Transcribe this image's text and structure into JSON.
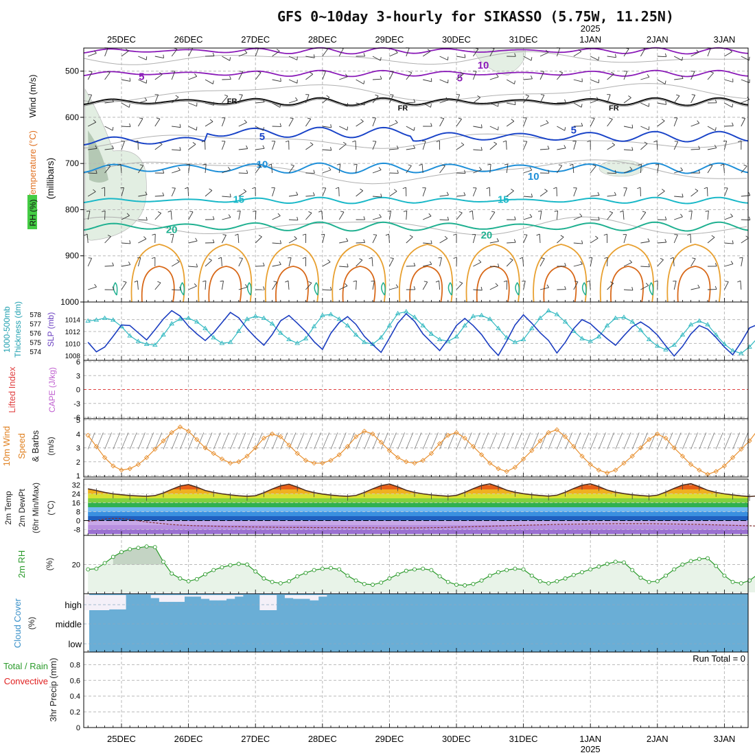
{
  "title": "GFS 0~10day 3-hourly for SIKASSO (5.75W, 11.25N)",
  "colors": {
    "jet_purple": "#8a1ab8",
    "freezing": "#111111",
    "blue5": "#1a44c8",
    "blue10": "#1e8fd8",
    "cyan15": "#19b8c8",
    "teal20": "#1fb090",
    "warm_orange": "#e8a030",
    "dark_orange": "#d86818",
    "slp_blue": "#1a3cc0",
    "thickness_cyan": "#30b8c0",
    "wind_orange": "#e89030",
    "rh_green": "#2a9a2a",
    "cloud_blue": "#6aaed6",
    "cape_red": "#e04040"
  },
  "chart_data": {
    "type": "meteogram",
    "time_axis": {
      "year_label": "2025",
      "dates": [
        "25DEC",
        "26DEC",
        "27DEC",
        "28DEC",
        "29DEC",
        "30DEC",
        "31DEC",
        "1JAN",
        "2JAN",
        "3JAN"
      ],
      "start_date": "24DEC 12Z",
      "step_hours": 3,
      "n_steps": 81
    },
    "panels": {
      "upper_air": {
        "ylabel_left": [
          "Wind (m/s)",
          "Temperature (°C)",
          "RH (%)"
        ],
        "ylabel_mid": "(millibars)",
        "ylim": [
          1000,
          450
        ],
        "yticks": [
          500,
          600,
          700,
          800,
          900,
          1000
        ],
        "contour_labels": [
          {
            "text": "10",
            "day": 5.4,
            "p": 487,
            "color": "jet_purple"
          },
          {
            "text": "5",
            "day": 0.3,
            "p": 512,
            "color": "jet_purple"
          },
          {
            "text": "5",
            "day": 5.05,
            "p": 515,
            "color": "jet_purple"
          },
          {
            "text": "FR",
            "day": 1.65,
            "p": 563,
            "color": "freezing"
          },
          {
            "text": "FR",
            "day": 4.2,
            "p": 578,
            "color": "freezing"
          },
          {
            "text": "FR",
            "day": 7.35,
            "p": 578,
            "color": "freezing"
          },
          {
            "text": "5",
            "day": 2.1,
            "p": 642,
            "color": "blue5"
          },
          {
            "text": "5",
            "day": 6.75,
            "p": 628,
            "color": "blue5"
          },
          {
            "text": "10",
            "day": 2.1,
            "p": 702,
            "color": "blue10"
          },
          {
            "text": "10",
            "day": 6.15,
            "p": 728,
            "color": "blue10"
          },
          {
            "text": "15",
            "day": 1.75,
            "p": 778,
            "color": "cyan15"
          },
          {
            "text": "15",
            "day": 5.7,
            "p": 778,
            "color": "cyan15"
          },
          {
            "text": "20",
            "day": 0.75,
            "p": 843,
            "color": "teal20"
          },
          {
            "text": "20",
            "day": 5.45,
            "p": 855,
            "color": "teal20"
          }
        ]
      },
      "slp_thickness": {
        "ylabel": [
          "1000-500mb",
          "Thickness (dm)",
          "SLP (mb)"
        ],
        "thickness_ticks": [
          574,
          575,
          576,
          577,
          578
        ],
        "slp_ticks": [
          1008,
          1010,
          1012,
          1014
        ],
        "slp_ylim": [
          1007.4,
          1015.8
        ],
        "thk_ylim": [
          573.2,
          578.6
        ],
        "slp_mb": [
          1010.2,
          1008.6,
          1009.4,
          1011.2,
          1013.1,
          1013.0,
          1011.8,
          1010.6,
          1012.3,
          1014.1,
          1015.5,
          1014.6,
          1012.9,
          1011.6,
          1010.5,
          1011.8,
          1013.5,
          1015.2,
          1014.3,
          1012.5,
          1011.0,
          1009.7,
          1011.5,
          1013.8,
          1014.7,
          1013.4,
          1012.0,
          1010.3,
          1009.0,
          1011.7,
          1013.5,
          1014.5,
          1013.2,
          1011.2,
          1009.8,
          1008.5,
          1010.9,
          1013.4,
          1015.0,
          1013.7,
          1011.6,
          1010.2,
          1008.8,
          1010.7,
          1013.0,
          1014.2,
          1013.0,
          1011.5,
          1009.5,
          1008.0,
          1010.4,
          1013.1,
          1014.8,
          1013.4,
          1011.8,
          1010.5,
          1008.4,
          1010.2,
          1012.5,
          1014.0,
          1013.3,
          1012.0,
          1010.8,
          1009.7,
          1011.3,
          1012.8,
          1013.6,
          1012.7,
          1011.4,
          1009.6,
          1007.9,
          1009.5,
          1011.6,
          1013.0,
          1012.4,
          1011.0,
          1009.4,
          1008.1,
          1010.2,
          1012.6,
          1013.2
        ],
        "thickness_dm": [
          577.3,
          577.4,
          577.6,
          577.4,
          576.7,
          575.7,
          575.1,
          574.8,
          574.7,
          575.8,
          577.0,
          577.5,
          577.6,
          577.2,
          576.5,
          575.5,
          574.9,
          575.0,
          576.2,
          577.5,
          577.8,
          577.6,
          577.0,
          576.0,
          575.3,
          574.9,
          575.4,
          576.7,
          577.9,
          578.0,
          577.5,
          576.8,
          575.8,
          575.0,
          574.8,
          575.5,
          576.8,
          578.1,
          578.3,
          577.7,
          576.8,
          575.9,
          575.3,
          575.1,
          575.6,
          576.8,
          577.8,
          577.9,
          577.5,
          576.5,
          575.5,
          575.0,
          575.3,
          576.5,
          577.6,
          578.4,
          578.0,
          577.2,
          576.2,
          575.4,
          575.1,
          575.6,
          576.8,
          577.6,
          577.7,
          577.2,
          576.3,
          575.3,
          574.6,
          574.2,
          574.7,
          575.8,
          576.9,
          577.3,
          576.9,
          575.8,
          574.8,
          574.1,
          573.8,
          574.5,
          575.5
        ]
      },
      "li_cape": {
        "ylabel": [
          "Lifted Index",
          "CAPE (J/kg)"
        ],
        "yticks": [
          "6",
          "3",
          "0",
          "-3",
          "-6"
        ],
        "lifted_index": 0,
        "cape_jkg": 0
      },
      "wind10m": {
        "ylabel": [
          "10m Wind",
          "Speed",
          "& Barbs",
          "(m/s)"
        ],
        "yticks": [
          1,
          2,
          3,
          4,
          5
        ],
        "ylim": [
          1,
          5
        ],
        "speed_ms": [
          3.9,
          3.1,
          2.3,
          1.7,
          1.4,
          1.5,
          1.8,
          2.3,
          2.9,
          3.5,
          4.1,
          4.5,
          4.2,
          3.6,
          3.0,
          2.6,
          2.2,
          1.9,
          2.0,
          2.4,
          3.0,
          3.7,
          4.0,
          3.8,
          3.2,
          2.6,
          2.1,
          1.9,
          1.9,
          2.1,
          2.5,
          3.1,
          3.8,
          4.2,
          4.0,
          3.4,
          2.8,
          2.3,
          2.0,
          1.9,
          2.1,
          2.6,
          3.3,
          3.9,
          4.1,
          3.7,
          3.1,
          2.5,
          1.9,
          1.5,
          1.3,
          1.6,
          2.2,
          2.8,
          3.5,
          4.1,
          4.3,
          3.8,
          3.1,
          2.4,
          1.8,
          1.4,
          1.2,
          1.4,
          1.9,
          2.4,
          3.0,
          3.6,
          4.0,
          3.7,
          3.0,
          2.4,
          1.8,
          1.4,
          1.1,
          1.3,
          1.7,
          2.3,
          2.9,
          3.5,
          4.3
        ]
      },
      "temp2m": {
        "ylabel": [
          "2m Temp",
          "2m DewPt",
          "(6hr Min/Max)",
          "(°C)"
        ],
        "yticks": [
          32,
          24,
          16,
          8,
          0,
          -8
        ],
        "ylim": [
          -12,
          36
        ],
        "temp_c": [
          28.5,
          27.0,
          25.3,
          24.0,
          23.2,
          22.5,
          22.1,
          21.8,
          22.4,
          24.8,
          28.0,
          31.0,
          32.3,
          30.0,
          27.0,
          25.3,
          24.0,
          23.0,
          22.3,
          21.8,
          22.3,
          25.0,
          28.3,
          31.2,
          32.6,
          30.1,
          27.0,
          25.1,
          23.8,
          22.9,
          22.2,
          21.8,
          22.5,
          25.2,
          28.5,
          31.4,
          32.8,
          30.3,
          27.2,
          25.3,
          24.0,
          23.1,
          22.4,
          21.9,
          22.6,
          25.3,
          28.6,
          31.5,
          32.9,
          30.4,
          27.3,
          25.4,
          24.1,
          23.2,
          22.5,
          22.0,
          22.8,
          25.5,
          28.8,
          31.7,
          33.0,
          30.5,
          27.4,
          25.5,
          24.2,
          23.2,
          22.5,
          22.0,
          22.8,
          25.6,
          28.9,
          31.8,
          33.1,
          30.4,
          27.2,
          25.3,
          24.0,
          23.0,
          22.2,
          21.6,
          22.1
        ],
        "dewpt_c": [
          -0.5,
          0.0,
          1.5,
          2.0,
          1.8,
          1.0,
          -0.2,
          -1.2,
          -2.0,
          -2.8,
          -3.5,
          -4.0,
          -4.3,
          -4.6,
          -4.8,
          -5.0,
          -5.2,
          -5.4,
          -5.5,
          -5.6,
          -5.7,
          -5.8,
          -5.9,
          -6.0,
          -6.0,
          -6.1,
          -6.1,
          -6.2,
          -6.2,
          -6.3,
          -6.3,
          -6.3,
          -6.4,
          -6.4,
          -6.4,
          -6.5,
          -6.5,
          -6.5,
          -6.5,
          -6.5,
          -6.4,
          -6.3,
          -6.2,
          -6.0,
          -5.8,
          -5.6,
          -5.4,
          -5.2,
          -5.0,
          -4.8,
          -4.6,
          -4.4,
          -4.2,
          -4.0,
          -3.8,
          -3.6,
          -3.4,
          -3.3,
          -3.2,
          -3.1,
          -3.0,
          -2.9,
          -2.9,
          -2.8,
          -2.8,
          -2.8,
          -2.8,
          -2.8,
          -2.9,
          -3.0,
          -3.1,
          -3.2,
          -3.3,
          -3.4,
          -3.6,
          -3.8,
          -4.0,
          -4.2,
          -4.4,
          -4.6,
          -4.9
        ]
      },
      "rh2m": {
        "ylabel": [
          "2m RH",
          "(%)"
        ],
        "yticks": [
          20
        ],
        "ylim": [
          0,
          40
        ],
        "rh_pct": [
          16.5,
          17.0,
          21.0,
          25.5,
          29.0,
          31.0,
          32.0,
          33.0,
          32.5,
          22.0,
          13.5,
          10.0,
          8.0,
          9.5,
          13.0,
          16.0,
          18.0,
          19.5,
          20.5,
          20.0,
          15.0,
          10.0,
          7.5,
          6.5,
          8.0,
          11.5,
          14.0,
          16.0,
          17.0,
          17.5,
          16.5,
          12.0,
          8.5,
          6.0,
          5.5,
          7.0,
          10.0,
          13.0,
          15.5,
          16.5,
          17.0,
          16.0,
          11.5,
          7.5,
          5.5,
          5.0,
          6.0,
          8.5,
          12.0,
          14.5,
          16.0,
          17.0,
          16.5,
          12.0,
          8.0,
          6.5,
          8.0,
          10.0,
          12.5,
          14.5,
          16.5,
          18.5,
          20.5,
          22.0,
          21.5,
          16.0,
          10.5,
          7.5,
          8.0,
          12.0,
          16.5,
          20.0,
          22.5,
          24.0,
          24.5,
          19.0,
          12.0,
          7.5,
          6.5,
          8.5,
          13.0
        ]
      },
      "cloud_cover": {
        "ylabel": [
          "Cloud Cover",
          "(%)"
        ],
        "levels": [
          "high",
          "middle",
          "low"
        ],
        "high_clear": [
          1.0,
          1.0,
          1.0,
          0.95,
          0.95,
          0.0,
          0.0,
          0.0,
          0.2,
          0.45,
          0.45,
          0.45,
          0.1,
          0.1,
          0.25,
          0.35,
          0.35,
          0.25,
          0.1,
          0.0,
          0.0,
          1.0,
          1.0,
          0.0,
          0.2,
          0.25,
          0.25,
          0.35,
          0.1,
          0.0,
          0.0,
          0.0,
          0.0,
          0.0,
          0.0,
          0.0,
          0.0,
          0.0,
          0.0,
          0.0,
          0.0,
          0.0,
          0.0,
          0.0,
          0.0,
          0.0,
          0.0,
          0.0,
          0.0,
          0.0,
          0.0,
          0.0,
          0.0,
          0.0,
          0.0,
          0.0,
          0.0,
          0.0,
          0.0,
          0.0,
          0.0,
          0.0,
          0.0,
          0.0,
          0.0,
          0.0,
          0.0,
          0.0,
          0.0,
          0.0,
          0.0,
          0.0,
          0.0,
          0.0,
          0.0,
          0.0,
          0.0,
          0.0,
          0.0,
          0.0,
          0.0
        ]
      },
      "precip": {
        "ylabel": [
          "3hr Precip (mm)"
        ],
        "ylabel_left": [
          "Total / Rain",
          "Convective"
        ],
        "yticks": [
          0,
          0.2,
          0.4,
          0.6,
          0.8
        ],
        "ylim": [
          0,
          0.96
        ],
        "run_total_label": "Run Total = 0",
        "total_mm": 0,
        "convective_mm": 0
      }
    }
  }
}
